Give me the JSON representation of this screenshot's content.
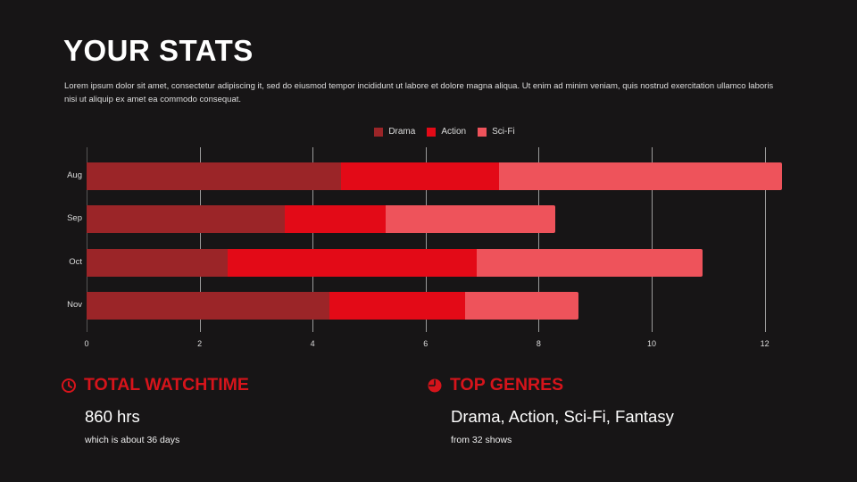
{
  "header": {
    "title": "YOUR STATS",
    "description": "Lorem ipsum dolor sit amet, consectetur adipiscing it, sed do eiusmod tempor incididunt ut labore et dolore magna aliqua. Ut enim ad minim veniam, quis nostrud exercitation ullamco laboris nisi ut aliquip ex amet ea commodo consequat."
  },
  "chart_data": {
    "type": "bar",
    "orientation": "horizontal",
    "stacked": true,
    "title": "",
    "xlabel": "",
    "ylabel": "",
    "categories": [
      "Aug",
      "Sep",
      "Oct",
      "Nov"
    ],
    "series": [
      {
        "name": "Drama",
        "color": "#9b2528",
        "values": [
          4.5,
          3.5,
          2.5,
          4.3
        ]
      },
      {
        "name": "Action",
        "color": "#e30a17",
        "values": [
          2.8,
          1.8,
          4.4,
          2.4
        ]
      },
      {
        "name": "Sci-Fi",
        "color": "#ee535b",
        "values": [
          5.0,
          3.0,
          4.0,
          2.0
        ]
      }
    ],
    "xlim": [
      0,
      12.3
    ],
    "xticks": [
      "0",
      "2",
      "4",
      "6",
      "8",
      "10",
      "12"
    ],
    "grid": true,
    "legend_position": "top"
  },
  "stats": {
    "watchtime": {
      "icon": "clock-icon",
      "heading": "TOTAL WATCHTIME",
      "value": "860 hrs",
      "note": "which is about 36 days"
    },
    "genres": {
      "icon": "pie-chart-icon",
      "heading": "TOP GENRES",
      "value": "Drama, Action, Sci-Fi, Fantasy",
      "note": "from 32 shows"
    }
  },
  "colors": {
    "background": "#171516",
    "accent": "#d6141b"
  }
}
